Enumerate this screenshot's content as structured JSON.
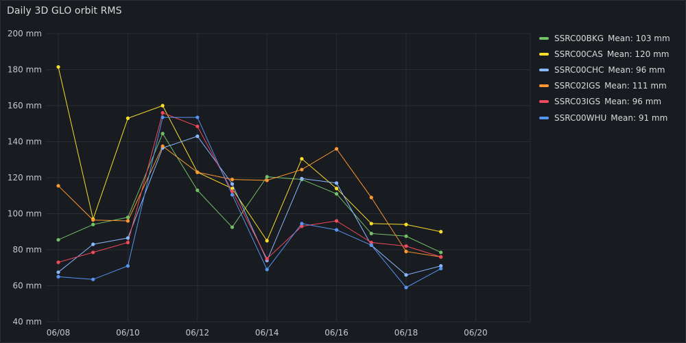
{
  "panel": {
    "title": "Daily 3D GLO orbit RMS"
  },
  "chart_data": {
    "type": "line",
    "title": "Daily 3D GLO orbit RMS",
    "x_ticks": [
      "06/08",
      "06/10",
      "06/12",
      "06/14",
      "06/16",
      "06/18",
      "06/20"
    ],
    "y_ticks": [
      "40 mm",
      "60 mm",
      "80 mm",
      "100 mm",
      "120 mm",
      "140 mm",
      "160 mm",
      "180 mm",
      "200 mm"
    ],
    "ylim": [
      40,
      200
    ],
    "xlim": [
      "06/08",
      "06/21"
    ],
    "grid": true,
    "legend_position": "right",
    "x": [
      "06/08",
      "06/09",
      "06/10",
      "06/11",
      "06/12",
      "06/13",
      "06/14",
      "06/15",
      "06/16",
      "06/17",
      "06/18",
      "06/19"
    ],
    "series": [
      {
        "name": "SSRC00BKG",
        "mean_label": "Mean: 103 mm",
        "color": "#73bf69",
        "values": [
          85.5,
          94,
          98,
          144.5,
          113,
          92.5,
          120.5,
          119,
          111,
          89,
          87.5,
          78.5
        ]
      },
      {
        "name": "SSRC00CAS",
        "mean_label": "Mean: 120 mm",
        "color": "#fade2a",
        "values": [
          181.5,
          97,
          153,
          160,
          123,
          114,
          85,
          130.5,
          114,
          94.5,
          94,
          90
        ]
      },
      {
        "name": "SSRC00CHC",
        "mean_label": "Mean: 96 mm",
        "color": "#8ab8ff",
        "values": [
          67.5,
          83,
          86.5,
          136.5,
          143,
          116.5,
          74,
          119.5,
          117,
          82.5,
          66,
          71
        ]
      },
      {
        "name": "SSRC02IGS",
        "mean_label": "Mean: 111 mm",
        "color": "#ff9830",
        "values": [
          115.5,
          96.5,
          96,
          137.5,
          123,
          119,
          118.5,
          124.5,
          136,
          109,
          79,
          76
        ]
      },
      {
        "name": "SSRC03IGS",
        "mean_label": "Mean: 96 mm",
        "color": "#f2495c",
        "values": [
          73,
          78.5,
          84,
          156,
          148.5,
          112.5,
          75,
          93,
          96,
          84,
          82,
          76
        ]
      },
      {
        "name": "SSRC00WHU",
        "mean_label": "Mean: 91 mm",
        "color": "#5794f2",
        "values": [
          65,
          63.5,
          71,
          153.5,
          153.5,
          110.5,
          69,
          94.5,
          91,
          82.5,
          59,
          69.5
        ]
      }
    ]
  }
}
